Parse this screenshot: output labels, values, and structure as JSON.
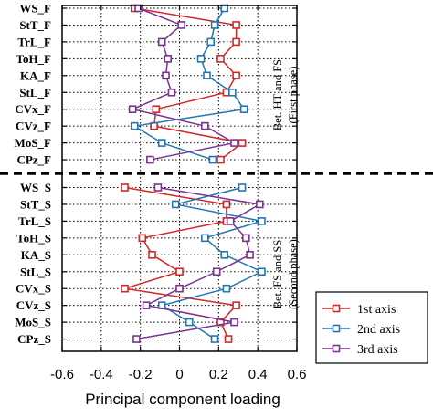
{
  "chart_data": {
    "type": "line",
    "orientation": "horizontal-profile",
    "xlabel": "Principal component loading",
    "xlim": [
      -0.6,
      0.6
    ],
    "xticks": [
      "-0.6",
      "-0.4",
      "-0.2",
      "0",
      "0.2",
      "0.4",
      "0.6"
    ],
    "xtick_values": [
      -0.6,
      -0.4,
      -0.2,
      0,
      0.2,
      0.4,
      0.6
    ],
    "grid": true,
    "legend_position": "bottom-right",
    "categories": [
      "WS_F",
      "StT_F",
      "TrL_F",
      "ToH_F",
      "KA_F",
      "StL_F",
      "CVx_F",
      "CVz_F",
      "MoS_F",
      "CPz_F",
      "WS_S",
      "StT_S",
      "TrL_S",
      "ToH_S",
      "KA_S",
      "StL_S",
      "CVx_S",
      "CVz_S",
      "MoS_S",
      "CPz_S"
    ],
    "divider_after_index": 9,
    "phase_labels": [
      {
        "line1": "Bet. HT and FS",
        "line2": "(First phase)"
      },
      {
        "line1": "Bet. FS and SS",
        "line2": "(Second phase)"
      }
    ],
    "series": [
      {
        "name": "1st axis",
        "color": "#d62728",
        "values": [
          -0.23,
          0.29,
          0.29,
          0.21,
          0.29,
          0.24,
          -0.12,
          -0.13,
          0.32,
          0.21,
          -0.28,
          0.24,
          0.24,
          -0.19,
          -0.14,
          0.0,
          -0.28,
          0.29,
          0.21,
          0.25
        ]
      },
      {
        "name": "2nd axis",
        "color": "#1f77b4",
        "values": [
          0.23,
          0.18,
          0.16,
          0.11,
          0.14,
          0.27,
          0.33,
          -0.23,
          -0.09,
          0.17,
          0.32,
          -0.02,
          0.42,
          0.13,
          0.23,
          0.42,
          0.24,
          -0.09,
          0.05,
          0.18
        ]
      },
      {
        "name": "3rd axis",
        "color": "#7b3294",
        "values": [
          -0.21,
          0.01,
          -0.09,
          -0.06,
          -0.07,
          -0.04,
          -0.24,
          0.13,
          0.28,
          -0.15,
          -0.11,
          0.41,
          0.26,
          0.34,
          0.36,
          0.19,
          0.0,
          -0.17,
          0.28,
          -0.22
        ]
      }
    ]
  }
}
